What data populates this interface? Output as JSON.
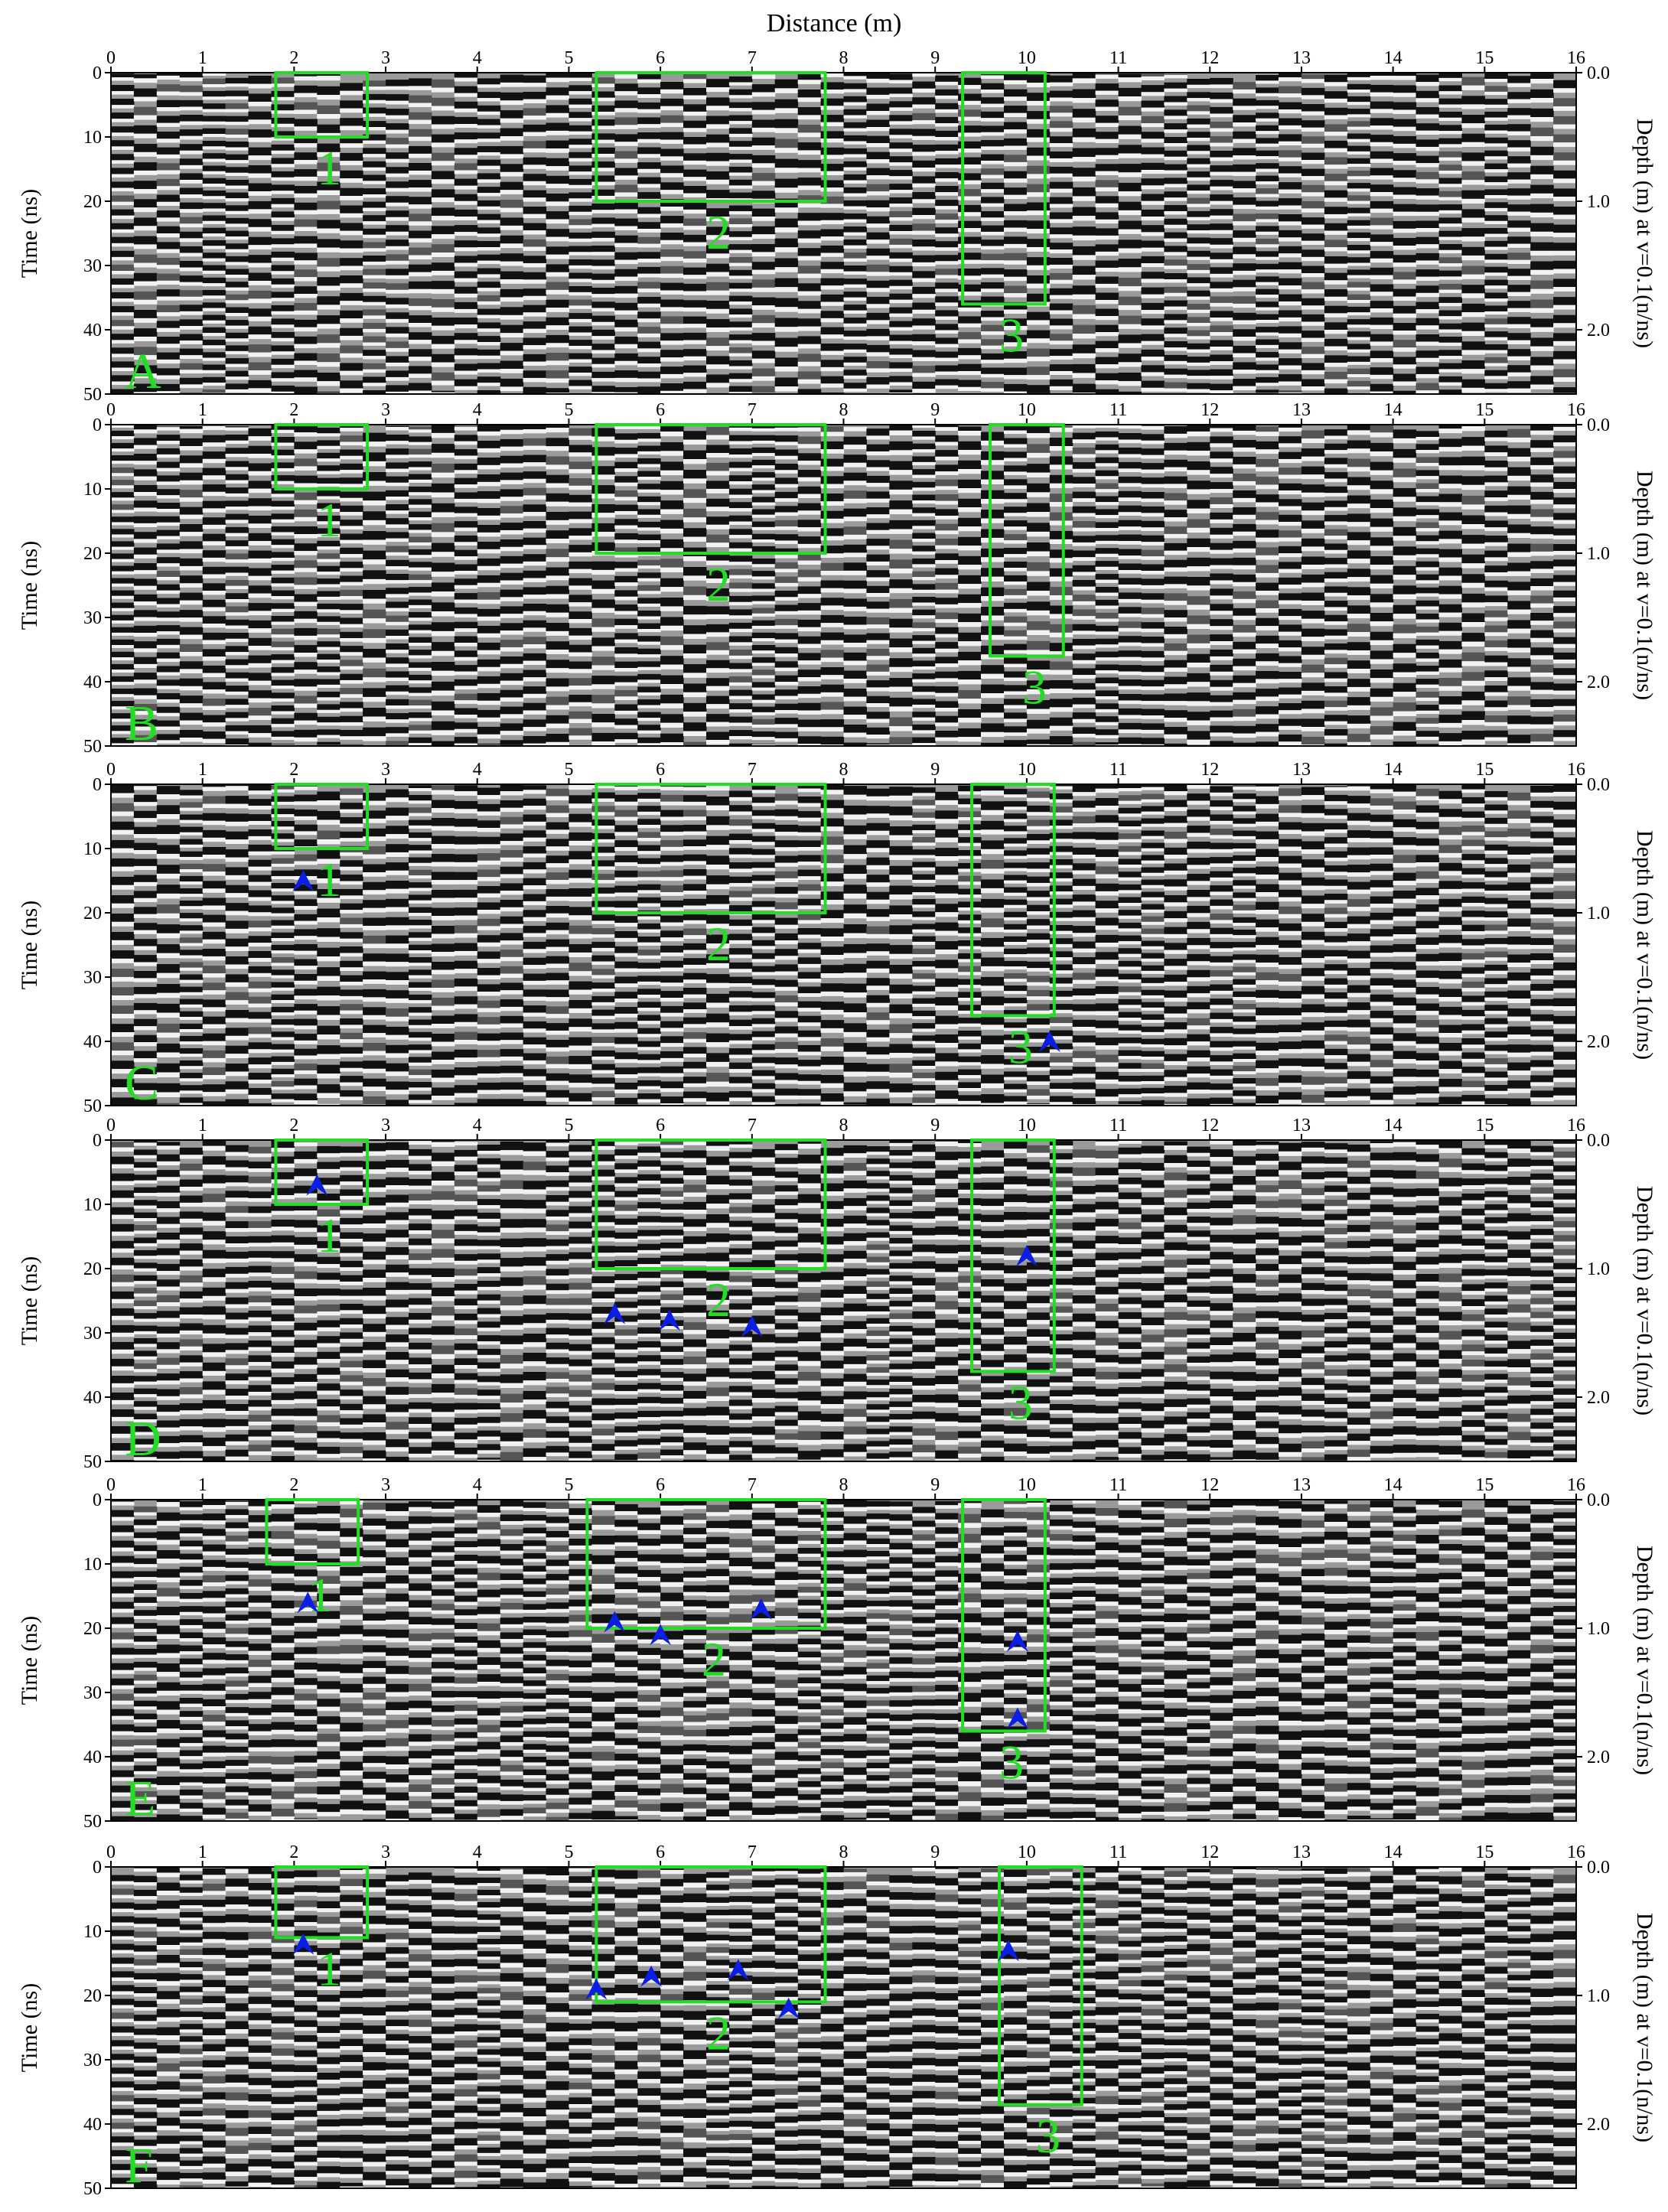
{
  "figure": {
    "title": "Distance (m)",
    "x_ticks": [
      "0",
      "1",
      "2",
      "3",
      "4",
      "5",
      "6",
      "7",
      "8",
      "9",
      "10",
      "11",
      "12",
      "13",
      "14",
      "15",
      "16"
    ],
    "time_ticks": [
      "0",
      "10",
      "20",
      "30",
      "40",
      "50"
    ],
    "depth_ticks": [
      "0.0",
      "1.0",
      "2.0"
    ],
    "left_axis_label": "Time (ns)",
    "right_axis_label": "Depth (m) at v=0.1(n/ns)",
    "colors": {
      "box": "#22dd22",
      "arrow": "#0b1ee6",
      "panel_letter": "#22dd22"
    }
  },
  "panels": [
    {
      "letter": "A",
      "box_labels": [
        "1",
        "2",
        "3"
      ],
      "arrows": []
    },
    {
      "letter": "B",
      "box_labels": [
        "1",
        "2",
        "3"
      ],
      "arrows": []
    },
    {
      "letter": "C",
      "box_labels": [
        "1",
        "2",
        "3"
      ],
      "arrows": [
        {
          "x_m": 2.1,
          "t_ns": 15
        },
        {
          "x_m": 10.25,
          "t_ns": 40
        }
      ]
    },
    {
      "letter": "D",
      "box_labels": [
        "1",
        "2",
        "3"
      ],
      "arrows": [
        {
          "x_m": 2.25,
          "t_ns": 7
        },
        {
          "x_m": 5.5,
          "t_ns": 27
        },
        {
          "x_m": 6.1,
          "t_ns": 28
        },
        {
          "x_m": 7.0,
          "t_ns": 29
        },
        {
          "x_m": 10.0,
          "t_ns": 18
        }
      ]
    },
    {
      "letter": "E",
      "box_labels": [
        "1",
        "2",
        "3"
      ],
      "arrows": [
        {
          "x_m": 2.15,
          "t_ns": 16
        },
        {
          "x_m": 5.5,
          "t_ns": 19
        },
        {
          "x_m": 6.0,
          "t_ns": 21
        },
        {
          "x_m": 7.1,
          "t_ns": 17
        },
        {
          "x_m": 9.9,
          "t_ns": 22
        },
        {
          "x_m": 9.9,
          "t_ns": 34
        }
      ]
    },
    {
      "letter": "F",
      "box_labels": [
        "1",
        "2",
        "3"
      ],
      "arrows": [
        {
          "x_m": 2.1,
          "t_ns": 12
        },
        {
          "x_m": 5.3,
          "t_ns": 19
        },
        {
          "x_m": 5.9,
          "t_ns": 17
        },
        {
          "x_m": 6.85,
          "t_ns": 16
        },
        {
          "x_m": 7.4,
          "t_ns": 22
        },
        {
          "x_m": 9.8,
          "t_ns": 13
        }
      ]
    }
  ]
}
